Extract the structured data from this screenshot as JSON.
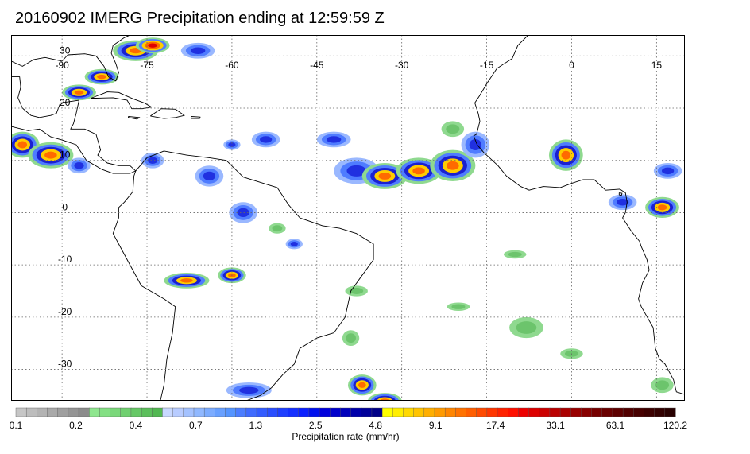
{
  "title": "20160902 IMERG Precipitation ending at 12:59:59 Z",
  "map": {
    "lon_labels": [
      "-90",
      "-75",
      "-60",
      "-45",
      "-30",
      "-15",
      "0",
      "15"
    ],
    "lat_labels": [
      "30",
      "20",
      "10",
      "0",
      "-10",
      "-20",
      "-30"
    ],
    "lon_values": [
      -90,
      -75,
      -60,
      -45,
      -30,
      -15,
      0,
      15
    ],
    "lat_values": [
      30,
      20,
      10,
      0,
      -10,
      -20,
      -30
    ],
    "lon_range": [
      -99,
      20
    ],
    "lat_range": [
      -36,
      34
    ],
    "gridlines": "dotted",
    "coastline_color": "#000000"
  },
  "colorbar": {
    "label": "Precipitation rate (mm/hr)",
    "tick_labels": [
      "0.1",
      "0.2",
      "0.4",
      "0.7",
      "1.3",
      "2.5",
      "4.8",
      "9.1",
      "17.4",
      "33.1",
      "63.1",
      "120.2"
    ],
    "colors": [
      "#c6c6c6",
      "#bdbdbd",
      "#b3b3b3",
      "#a9a9a9",
      "#9f9f9f",
      "#959595",
      "#8c8c8c",
      "#8ee68e",
      "#84e084",
      "#7ad87a",
      "#70d070",
      "#66c866",
      "#5cbf5c",
      "#52b852",
      "#c8d8ff",
      "#b8ccff",
      "#a4c2ff",
      "#90b8ff",
      "#7cacff",
      "#68a0ff",
      "#5494ff",
      "#4b7dff",
      "#3f6bff",
      "#335cff",
      "#2a4eff",
      "#1f3fff",
      "#1530ff",
      "#0b20ff",
      "#0010ee",
      "#0000dd",
      "#0000cc",
      "#0000bb",
      "#0000aa",
      "#000099",
      "#000088",
      "#ffff00",
      "#ffee00",
      "#ffd900",
      "#ffc400",
      "#ffaf00",
      "#ff9a00",
      "#ff8500",
      "#ff7200",
      "#ff5e00",
      "#ff4a00",
      "#ff3600",
      "#ff2200",
      "#ff1000",
      "#ee0000",
      "#dd0000",
      "#cc0000",
      "#bb0000",
      "#aa0000",
      "#990000",
      "#880000",
      "#770000",
      "#6a0000",
      "#5e0000",
      "#520000",
      "#470000",
      "#3c0000",
      "#320000",
      "#280000"
    ]
  },
  "precip_cells": [
    {
      "lon": -77,
      "lat": 31,
      "rx": 4,
      "ry": 2,
      "level": "high"
    },
    {
      "lon": -74,
      "lat": 32,
      "rx": 3,
      "ry": 1.5,
      "level": "extreme"
    },
    {
      "lon": -66,
      "lat": 31,
      "rx": 3,
      "ry": 1.5,
      "level": "moderate"
    },
    {
      "lon": -83,
      "lat": 26,
      "rx": 3,
      "ry": 1.5,
      "level": "high"
    },
    {
      "lon": -87,
      "lat": 23,
      "rx": 3,
      "ry": 1.5,
      "level": "high"
    },
    {
      "lon": -97,
      "lat": 13,
      "rx": 3,
      "ry": 2.5,
      "level": "high"
    },
    {
      "lon": -92,
      "lat": 11,
      "rx": 4,
      "ry": 2.5,
      "level": "high"
    },
    {
      "lon": -87,
      "lat": 9,
      "rx": 2,
      "ry": 1.5,
      "level": "moderate"
    },
    {
      "lon": -74,
      "lat": 10,
      "rx": 2,
      "ry": 1.5,
      "level": "moderate"
    },
    {
      "lon": -64,
      "lat": 7,
      "rx": 2.5,
      "ry": 2,
      "level": "moderate"
    },
    {
      "lon": -60,
      "lat": 13,
      "rx": 1.5,
      "ry": 1,
      "level": "moderate"
    },
    {
      "lon": -54,
      "lat": 14,
      "rx": 2.5,
      "ry": 1.5,
      "level": "moderate"
    },
    {
      "lon": -42,
      "lat": 14,
      "rx": 3,
      "ry": 1.5,
      "level": "moderate"
    },
    {
      "lon": -38,
      "lat": 8,
      "rx": 4,
      "ry": 2.5,
      "level": "moderate"
    },
    {
      "lon": -33,
      "lat": 7,
      "rx": 4,
      "ry": 2.5,
      "level": "high"
    },
    {
      "lon": -27,
      "lat": 8,
      "rx": 4,
      "ry": 2.5,
      "level": "high"
    },
    {
      "lon": -21,
      "lat": 9,
      "rx": 4,
      "ry": 3,
      "level": "high"
    },
    {
      "lon": -17,
      "lat": 13,
      "rx": 2.5,
      "ry": 2.5,
      "level": "moderate"
    },
    {
      "lon": -21,
      "lat": 16,
      "rx": 2,
      "ry": 1.5,
      "level": "light"
    },
    {
      "lon": -1,
      "lat": 11,
      "rx": 3,
      "ry": 3,
      "level": "high"
    },
    {
      "lon": 9,
      "lat": 2,
      "rx": 2.5,
      "ry": 1.5,
      "level": "moderate"
    },
    {
      "lon": 16,
      "lat": 1,
      "rx": 3,
      "ry": 2,
      "level": "high"
    },
    {
      "lon": 17,
      "lat": 8,
      "rx": 2.5,
      "ry": 1.5,
      "level": "moderate"
    },
    {
      "lon": -58,
      "lat": 0,
      "rx": 2.5,
      "ry": 2,
      "level": "moderate"
    },
    {
      "lon": -68,
      "lat": -13,
      "rx": 4,
      "ry": 1.5,
      "level": "high"
    },
    {
      "lon": -60,
      "lat": -12,
      "rx": 2.5,
      "ry": 1.5,
      "level": "high"
    },
    {
      "lon": -49,
      "lat": -6,
      "rx": 1.5,
      "ry": 1,
      "level": "moderate"
    },
    {
      "lon": -37,
      "lat": -33,
      "rx": 2.5,
      "ry": 2,
      "level": "high"
    },
    {
      "lon": -33,
      "lat": -36,
      "rx": 3,
      "ry": 1.5,
      "level": "high"
    },
    {
      "lon": -57,
      "lat": -34,
      "rx": 4,
      "ry": 1.5,
      "level": "moderate"
    },
    {
      "lon": -8,
      "lat": -22,
      "rx": 3,
      "ry": 2,
      "level": "light"
    },
    {
      "lon": -39,
      "lat": -24,
      "rx": 1.5,
      "ry": 1.5,
      "level": "light"
    },
    {
      "lon": -38,
      "lat": -15,
      "rx": 2,
      "ry": 1,
      "level": "light"
    },
    {
      "lon": -20,
      "lat": -18,
      "rx": 2,
      "ry": 0.8,
      "level": "light"
    },
    {
      "lon": -10,
      "lat": -8,
      "rx": 2,
      "ry": 0.8,
      "level": "light"
    },
    {
      "lon": 0,
      "lat": -27,
      "rx": 2,
      "ry": 1,
      "level": "light"
    },
    {
      "lon": 16,
      "lat": -33,
      "rx": 2,
      "ry": 1.5,
      "level": "light"
    },
    {
      "lon": -52,
      "lat": -3,
      "rx": 1.5,
      "ry": 1,
      "level": "light"
    }
  ]
}
